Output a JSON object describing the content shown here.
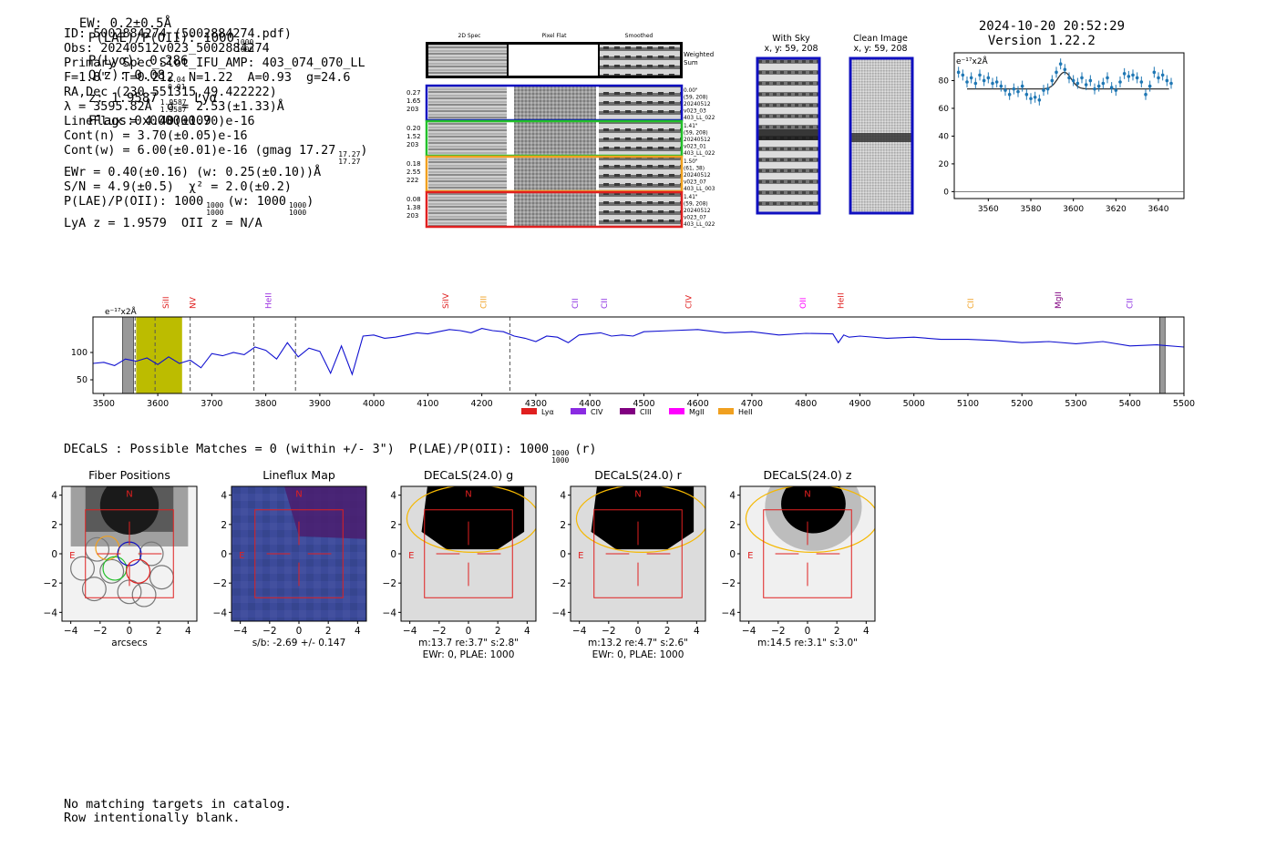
{
  "header": {
    "ew_text": "EW: 0.2±0.5Å",
    "plae_label": "P(LAE)/P(OII): 1000",
    "plae_hi": "1000",
    "plae_lo": "1000",
    "plya_text": "P(Lyα): 0.286",
    "qz_label": "Q(z): 0.08",
    "qz_hi": "0.04",
    "qz_lo": "0.01",
    "z_label": "z: 1.9587",
    "z_hi": "1.9587",
    "z_lo": "1.9587",
    "z_line": "Lyα",
    "flags": "Flags:0x00000009",
    "timestamp": "2024-10-20 20:52:29",
    "version": "Version 1.22.2"
  },
  "info": {
    "id": "ID: 5002884274 (5002884274.pdf)",
    "obs": "Obs: 20240512v023_5002884274",
    "primary": "Primary Spec_Slot_IFU_AMP: 403_074_070_LL",
    "fibers": "F=1.8\"  T=0.212  N=1.22  A=0.93  g=24.6",
    "radec": "RA,Dec (230.551315,49.422222)",
    "lambda": "λ = 3595.82Å  σ = 2.53(±1.33)Å",
    "lineflux": "LineFlux = 4.40(±1.70)e-16",
    "contn": "Cont(n) = 3.70(±0.05)e-16",
    "contw": "Cont(w) = 6.00(±0.01)e-16 (gmag 17.27",
    "contw_hi": "17.27",
    "contw_lo": "17.27",
    "contw_end": ")",
    "ewr": "EWr = 0.40(±0.16) (w: 0.25(±0.10))Å",
    "sn": "S/N = 4.9(±0.5)  χ² = 2.0(±0.2)",
    "plae": "P(LAE)/P(OII): 1000",
    "plae_hi": "1000",
    "plae_lo": "1000",
    "plae_w": "(w: 1000",
    "plae_w_hi": "1000",
    "plae_w_lo": "1000",
    "plae_w_end": ")",
    "lyaz": "LyA z = 1.9579  OII z = N/A"
  },
  "cutouts": {
    "col_headers": [
      "2D Spec",
      "Pixel Flat",
      "Smoothed"
    ],
    "weighted_sum": [
      "Weighted",
      "Sum"
    ],
    "rows": [
      {
        "left": [
          "0.27",
          "1.65",
          "203"
        ],
        "right": [
          "0.00\"",
          "(59, 208)",
          "20240512",
          "v023_03",
          "403_LL_022"
        ],
        "color": "#1010c0"
      },
      {
        "left": [
          "0.20",
          "1.52",
          "203"
        ],
        "right": [
          "1.41\"",
          "(59, 208)",
          "20240512",
          "v023_01",
          "403_LL_022"
        ],
        "color": "#22c02a"
      },
      {
        "left": [
          "0.18",
          "2.55",
          "222"
        ],
        "right": [
          "1.50\"",
          "(61, 38)",
          "20240512",
          "v023_07",
          "403_LL_003"
        ],
        "color": "#f0a020"
      },
      {
        "left": [
          "0.08",
          "1.38",
          "203"
        ],
        "right": [
          "1.41\"",
          "(59, 208)",
          "20240512",
          "v023_07",
          "403_LL_022"
        ],
        "color": "#e02020"
      }
    ],
    "with_sky_title": "With Sky",
    "with_sky_sub": "x, y: 59, 208",
    "clean_title": "Clean Image",
    "clean_sub": "x, y: 59, 208"
  },
  "colors": {
    "box_blue": "#1010c0",
    "spec_line": "#1010d0",
    "highlight": "#bcbc00",
    "fit_points": "#1f77b4",
    "fiber_red": "#e02020",
    "ellipse": "#f5b800"
  },
  "zoom_chart": {
    "type": "scatter",
    "unit": "e⁻¹⁷x2Å",
    "ylim": [
      -5,
      100
    ],
    "xlim": [
      3544,
      3652
    ],
    "yticks": [
      0,
      20,
      40,
      60,
      80
    ],
    "xticks": [
      3560,
      3580,
      3600,
      3620,
      3640
    ],
    "x": [
      3546,
      3548,
      3550,
      3552,
      3554,
      3556,
      3558,
      3560,
      3562,
      3564,
      3566,
      3568,
      3570,
      3572,
      3574,
      3576,
      3578,
      3580,
      3582,
      3584,
      3586,
      3588,
      3590,
      3592,
      3594,
      3596,
      3598,
      3600,
      3602,
      3604,
      3606,
      3608,
      3610,
      3612,
      3614,
      3616,
      3618,
      3620,
      3622,
      3624,
      3626,
      3628,
      3630,
      3632,
      3634,
      3636,
      3638,
      3640,
      3642,
      3644,
      3646
    ],
    "y": [
      86,
      84,
      79,
      82,
      78,
      84,
      80,
      82,
      78,
      79,
      76,
      73,
      70,
      74,
      72,
      76,
      70,
      67,
      68,
      66,
      73,
      74,
      80,
      86,
      92,
      88,
      82,
      80,
      78,
      82,
      77,
      80,
      74,
      76,
      78,
      82,
      75,
      73,
      79,
      85,
      83,
      84,
      82,
      79,
      70,
      76,
      86,
      82,
      84,
      80,
      78
    ],
    "fit_baseline": 74,
    "fit_center": 3595.8,
    "fit_amp": 12,
    "fit_sigma": 3.2
  },
  "spectrum": {
    "type": "line",
    "unit": "e⁻¹⁷x2Å",
    "xlim": [
      3480,
      5500
    ],
    "ylim": [
      25,
      165
    ],
    "yticks": [
      50,
      100
    ],
    "xticks": [
      3500,
      3600,
      3700,
      3800,
      3900,
      4000,
      4100,
      4200,
      4300,
      4400,
      4500,
      4600,
      4700,
      4800,
      4900,
      5000,
      5100,
      5200,
      5300,
      5400,
      5500
    ],
    "highlight": [
      3560,
      3645
    ],
    "masked": [
      [
        3535,
        3555
      ],
      [
        5455,
        5465
      ]
    ],
    "dashed": [
      3558,
      3595,
      3660,
      3778,
      3855,
      4252
    ],
    "lines": [
      {
        "name": "NV",
        "wave": 3670,
        "color": "#e02020"
      },
      {
        "name": "SiII",
        "wave": 3620,
        "color": "#e02020"
      },
      {
        "name": "HeII",
        "wave": 3810,
        "color": "#9b30e0"
      },
      {
        "name": "SiIV",
        "wave": 4138,
        "color": "#e02020"
      },
      {
        "name": "CIII",
        "wave": 4208,
        "color": "#f0a020"
      },
      {
        "name": "CII",
        "wave": 4378,
        "color": "#8a2be2"
      },
      {
        "name": "CII",
        "wave": 4432,
        "color": "#8a2be2"
      },
      {
        "name": "CIV",
        "wave": 4588,
        "color": "#e02020"
      },
      {
        "name": "OII",
        "wave": 4800,
        "color": "#ff00ff"
      },
      {
        "name": "HeII",
        "wave": 4870,
        "color": "#e02020"
      },
      {
        "name": "CII",
        "wave": 5110,
        "color": "#f0a020"
      },
      {
        "name": "MgII",
        "wave": 5272,
        "color": "#800080"
      },
      {
        "name": "CII",
        "wave": 5405,
        "color": "#8a2be2"
      }
    ],
    "x": [
      3480,
      3500,
      3520,
      3540,
      3560,
      3580,
      3600,
      3620,
      3640,
      3660,
      3680,
      3700,
      3720,
      3740,
      3760,
      3780,
      3800,
      3820,
      3840,
      3860,
      3880,
      3900,
      3920,
      3940,
      3960,
      3980,
      4000,
      4020,
      4040,
      4060,
      4080,
      4100,
      4120,
      4140,
      4160,
      4180,
      4200,
      4220,
      4240,
      4260,
      4280,
      4300,
      4320,
      4340,
      4360,
      4380,
      4400,
      4420,
      4440,
      4460,
      4480,
      4500,
      4550,
      4600,
      4650,
      4700,
      4750,
      4800,
      4850,
      4860,
      4870,
      4880,
      4900,
      4950,
      5000,
      5050,
      5100,
      5150,
      5200,
      5250,
      5300,
      5350,
      5400,
      5450,
      5500
    ],
    "y": [
      80,
      82,
      76,
      88,
      84,
      90,
      78,
      92,
      80,
      86,
      72,
      98,
      94,
      100,
      96,
      110,
      104,
      88,
      118,
      92,
      108,
      102,
      62,
      112,
      60,
      130,
      132,
      126,
      128,
      132,
      136,
      134,
      138,
      142,
      140,
      136,
      144,
      140,
      138,
      130,
      126,
      120,
      130,
      128,
      118,
      132,
      134,
      136,
      130,
      132,
      130,
      138,
      140,
      142,
      136,
      138,
      132,
      135,
      134,
      118,
      132,
      128,
      130,
      126,
      128,
      124,
      124,
      122,
      118,
      120,
      116,
      120,
      112,
      114,
      110
    ],
    "legend": [
      {
        "name": "Lyα",
        "color": "#e02020"
      },
      {
        "name": "CIV",
        "color": "#8a2be2"
      },
      {
        "name": "CIII",
        "color": "#800080"
      },
      {
        "name": "MgII",
        "color": "#ff00ff"
      },
      {
        "name": "HeII",
        "color": "#f0a020"
      }
    ]
  },
  "decals": {
    "summary": "DECaLS : Possible Matches = 0 (within +/- 3\")  P(LAE)/P(OII): 1000",
    "summary_hi": "1000",
    "summary_lo": "1000",
    "summary_end": "(r)",
    "panels": [
      {
        "title": "Fiber Positions",
        "caption1": "arcsecs",
        "caption2": ""
      },
      {
        "title": "Lineflux Map",
        "caption1": "s/b: -2.69 +/- 0.147",
        "caption2": ""
      },
      {
        "title": "DECaLS(24.0) g",
        "caption1": "m:13.7  re:3.7\"  s:2.8\"",
        "caption2": "EWr: 0, PLAE: 1000"
      },
      {
        "title": "DECaLS(24.0) r",
        "caption1": "m:13.2  re:4.7\"  s:2.6\"",
        "caption2": "EWr: 0, PLAE: 1000"
      },
      {
        "title": "DECaLS(24.0) z",
        "caption1": "m:14.5  re:3.1\"  s:3.0\"",
        "caption2": ""
      }
    ],
    "ticks": [
      "−4",
      "−2",
      "0",
      "2",
      "4"
    ],
    "north": "N",
    "east": "E"
  },
  "footer": {
    "line1": "No matching targets in catalog.",
    "line2": "Row intentionally blank."
  }
}
